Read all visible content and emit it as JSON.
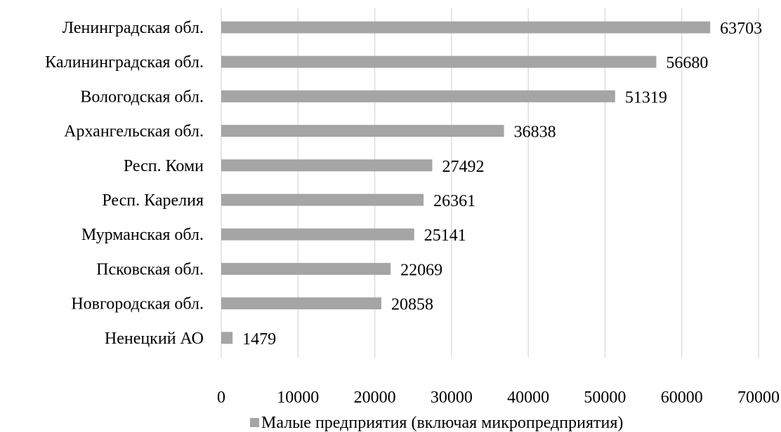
{
  "chart_data": {
    "type": "bar",
    "orientation": "horizontal",
    "title": "",
    "xlabel": "",
    "ylabel": "",
    "categories": [
      "Ленинградская обл.",
      "Калининградская обл.",
      "Вологодская обл.",
      "Архангельская обл.",
      "Респ. Коми",
      "Респ. Карелия",
      "Мурманская обл.",
      "Псковская обл.",
      "Новгородская обл.",
      "Ненецкий АО"
    ],
    "series": [
      {
        "name": "Малые предприятия (включая микропредприятия)",
        "values": [
          63703,
          56680,
          51319,
          36838,
          27492,
          26361,
          25141,
          22069,
          20858,
          1479
        ],
        "color": "#a5a5a5"
      }
    ],
    "data_labels": [
      "63703",
      "56680",
      "51319",
      "36838",
      "27492",
      "26361",
      "25141",
      "22069",
      "20858",
      "1479"
    ],
    "xlim": [
      0,
      70000
    ],
    "xticks": [
      0,
      10000,
      20000,
      30000,
      40000,
      50000,
      60000,
      70000
    ],
    "xtick_labels": [
      "0",
      "10000",
      "20000",
      "30000",
      "40000",
      "50000",
      "60000",
      "70000"
    ],
    "grid": true,
    "legend_position": "bottom"
  }
}
